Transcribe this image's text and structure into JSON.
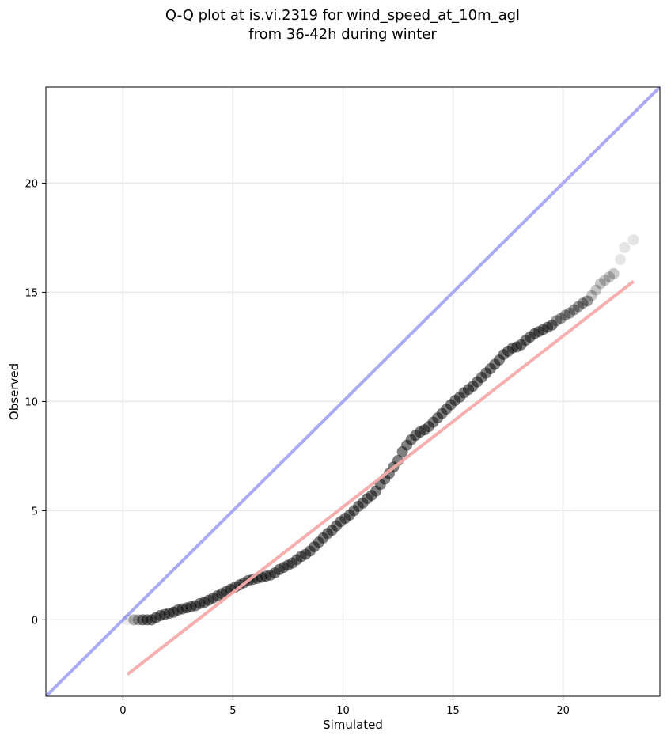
{
  "chart_data": {
    "type": "scatter",
    "title_line1": "Q-Q plot at is.vi.2319 for wind_speed_at_10m_agl",
    "title_line2": "from 36-42h during winter",
    "xlabel": "Simulated",
    "ylabel": "Observed",
    "xlim": [
      -3.5,
      24.4
    ],
    "ylim": [
      -3.5,
      24.4
    ],
    "x_ticks": [
      0,
      5,
      10,
      15,
      20
    ],
    "y_ticks": [
      0,
      5,
      10,
      15,
      20
    ],
    "grid": true,
    "reference_line": {
      "x": [
        -3.5,
        24.4
      ],
      "y": [
        -3.5,
        24.4
      ],
      "color": "#aaaaf5"
    },
    "fit_line": {
      "x": [
        0.2,
        23.2
      ],
      "y": [
        -2.5,
        15.5
      ],
      "color": "#f5aaaa"
    },
    "quantile_points": {
      "x": [
        0.2,
        0.5,
        0.7,
        0.9,
        1.1,
        1.3,
        1.5,
        1.7,
        1.9,
        2.1,
        2.3,
        2.5,
        2.7,
        2.9,
        3.1,
        3.3,
        3.5,
        3.7,
        3.9,
        4.1,
        4.3,
        4.5,
        4.7,
        4.9,
        5.1,
        5.3,
        5.5,
        5.7,
        5.9,
        6.1,
        6.3,
        6.5,
        6.7,
        6.9,
        7.1,
        7.3,
        7.5,
        7.7,
        7.9,
        8.1,
        8.3,
        8.5,
        8.7,
        8.9,
        9.1,
        9.3,
        9.5,
        9.7,
        9.9,
        10.1,
        10.3,
        10.5,
        10.7,
        10.9,
        11.1,
        11.3,
        11.5,
        11.7,
        11.9,
        12.1,
        12.3,
        12.5,
        12.7,
        12.9,
        13.1,
        13.3,
        13.5,
        13.7,
        13.9,
        14.1,
        14.3,
        14.5,
        14.7,
        14.9,
        15.1,
        15.3,
        15.5,
        15.7,
        15.9,
        16.1,
        16.3,
        16.5,
        16.7,
        16.9,
        17.1,
        17.3,
        17.5,
        17.7,
        17.9,
        18.1,
        18.3,
        18.5,
        18.7,
        18.9,
        19.1,
        19.3,
        19.5,
        19.7,
        19.9,
        20.1,
        20.3,
        20.5,
        20.7,
        20.9,
        21.1,
        21.3,
        21.5,
        21.7,
        21.9,
        22.1,
        22.3,
        22.6,
        22.8,
        23.2
      ],
      "y": [
        0.0,
        0.0,
        0.0,
        0.0,
        0.0,
        0.0,
        0.1,
        0.2,
        0.25,
        0.3,
        0.35,
        0.45,
        0.5,
        0.55,
        0.6,
        0.65,
        0.75,
        0.8,
        0.9,
        1.0,
        1.1,
        1.2,
        1.3,
        1.4,
        1.5,
        1.6,
        1.7,
        1.8,
        1.85,
        1.9,
        1.95,
        2.0,
        2.05,
        2.15,
        2.3,
        2.4,
        2.5,
        2.6,
        2.75,
        2.9,
        3.0,
        3.15,
        3.35,
        3.55,
        3.75,
        3.95,
        4.1,
        4.3,
        4.5,
        4.65,
        4.8,
        5.0,
        5.2,
        5.35,
        5.55,
        5.7,
        5.9,
        6.2,
        6.45,
        6.7,
        7.0,
        7.3,
        7.7,
        8.0,
        8.25,
        8.45,
        8.6,
        8.7,
        8.85,
        9.05,
        9.25,
        9.45,
        9.65,
        9.85,
        10.05,
        10.2,
        10.4,
        10.55,
        10.7,
        10.9,
        11.1,
        11.3,
        11.5,
        11.7,
        11.9,
        12.15,
        12.3,
        12.45,
        12.5,
        12.6,
        12.8,
        12.95,
        13.1,
        13.2,
        13.3,
        13.4,
        13.5,
        13.7,
        13.8,
        13.95,
        14.05,
        14.2,
        14.35,
        14.5,
        14.6,
        14.85,
        15.1,
        15.4,
        15.55,
        15.7,
        15.85,
        16.5,
        17.05,
        17.4
      ]
    }
  }
}
